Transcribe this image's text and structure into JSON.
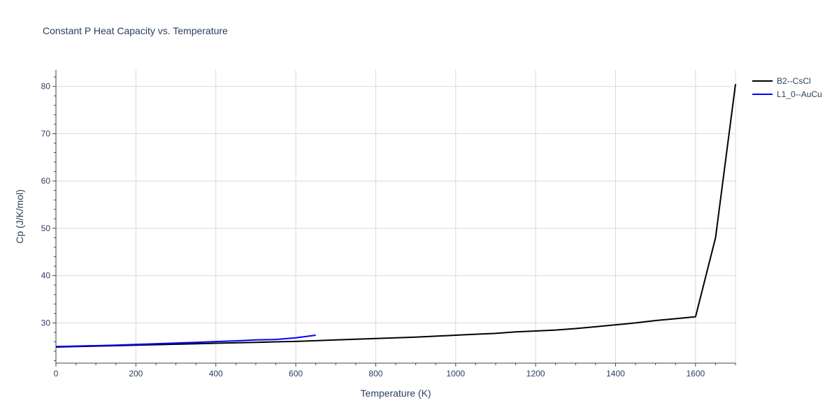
{
  "chart_data": {
    "type": "line",
    "title": "Constant P Heat Capacity vs. Temperature",
    "xlabel": "Temperature (K)",
    "ylabel": "Cp (J/K/mol)",
    "xlim": [
      0,
      1700
    ],
    "ylim": [
      21.5,
      83.5
    ],
    "x_ticks": [
      0,
      200,
      400,
      600,
      800,
      1000,
      1200,
      1400,
      1600
    ],
    "y_ticks": [
      30,
      40,
      50,
      60,
      70,
      80
    ],
    "grid": true,
    "legend_position": "top-right",
    "series": [
      {
        "name": "B2--CsCl",
        "color": "#000000",
        "x": [
          0,
          50,
          100,
          150,
          200,
          250,
          300,
          350,
          400,
          450,
          500,
          550,
          600,
          650,
          700,
          750,
          800,
          850,
          900,
          950,
          1000,
          1050,
          1100,
          1150,
          1200,
          1250,
          1300,
          1350,
          1400,
          1450,
          1500,
          1550,
          1600,
          1650,
          1700
        ],
        "y": [
          24.9,
          25.0,
          25.1,
          25.2,
          25.3,
          25.4,
          25.5,
          25.6,
          25.7,
          25.8,
          25.9,
          26.0,
          26.1,
          26.25,
          26.4,
          26.55,
          26.7,
          26.85,
          27.0,
          27.2,
          27.4,
          27.6,
          27.8,
          28.1,
          28.3,
          28.5,
          28.8,
          29.2,
          29.6,
          30.0,
          30.5,
          30.9,
          31.3,
          48.0,
          80.5
        ]
      },
      {
        "name": "L1_0--AuCu",
        "color": "#0000ff",
        "x": [
          0,
          50,
          100,
          150,
          200,
          250,
          300,
          350,
          400,
          450,
          500,
          550,
          600,
          650
        ],
        "y": [
          25.0,
          25.1,
          25.2,
          25.3,
          25.45,
          25.6,
          25.75,
          25.9,
          26.05,
          26.2,
          26.4,
          26.5,
          26.85,
          27.4
        ]
      }
    ]
  }
}
